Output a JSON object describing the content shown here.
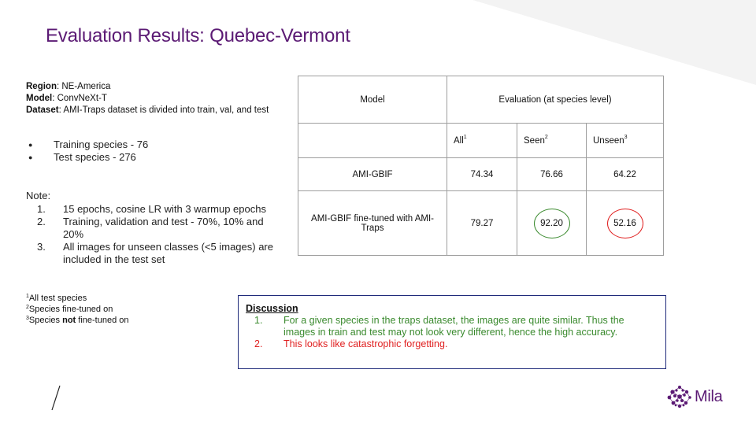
{
  "slide": {
    "title": "Evaluation Results: Quebec-Vermont",
    "accent_color": "#5b1a74"
  },
  "meta": {
    "region_label": "Region",
    "region_value": ": NE-America",
    "model_label": "Model",
    "model_value": ": ConvNeXt-T",
    "dataset_label": "Dataset",
    "dataset_value": ": AMI-Traps dataset is divided into train, val, and test"
  },
  "species": [
    "Training species - 76",
    "Test species - 276"
  ],
  "note": {
    "title": "Note:",
    "items": [
      "15 epochs, cosine LR with 3 warmup epochs",
      "Training, validation and test - 70%, 10% and 20%",
      "All images for unseen classes (<5 images) are included in the test set"
    ]
  },
  "footnotes": {
    "f1_mark": "1",
    "f1_text": "All test species",
    "f2_mark": "2",
    "f2_text": "Species fine-tuned on",
    "f3_mark": "3",
    "f3_pre": "Species ",
    "f3_bold": "not",
    "f3_post": " fine-tuned on"
  },
  "table": {
    "header_model": "Model",
    "header_eval": "Evaluation (at species level)",
    "col_all": "All",
    "col_all_mark": "1",
    "col_seen": "Seen",
    "col_seen_mark": "2",
    "col_unseen": "Unseen",
    "col_unseen_mark": "3",
    "rows": [
      {
        "model": "AMI-GBIF",
        "all": "74.34",
        "seen": "76.66",
        "unseen": "64.22"
      },
      {
        "model": "AMI-GBIF fine-tuned with AMI-Traps",
        "all": "79.27",
        "seen": "92.20",
        "unseen": "52.16"
      }
    ],
    "seen_highlight_color": "#3a8a2e",
    "unseen_highlight_color": "#e02020"
  },
  "discussion": {
    "title": "Discussion",
    "items": [
      {
        "text": "For a given species in the traps dataset, the images are quite similar. Thus the images in train and test may not look very different, hence the high accuracy.",
        "color": "#3a8a2e"
      },
      {
        "text": "This looks like catastrophic forgetting.",
        "color": "#e02020"
      }
    ]
  },
  "logo": {
    "word": "Mila"
  }
}
